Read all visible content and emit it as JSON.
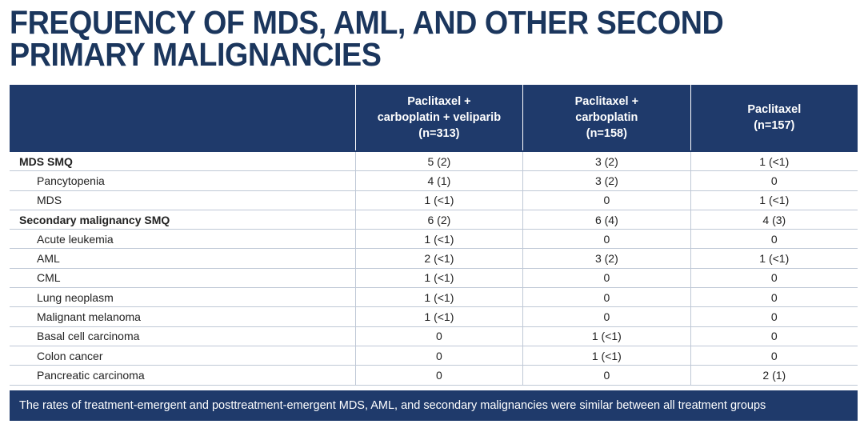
{
  "title": [
    "FREQUENCY OF MDS, AML, AND OTHER SECOND",
    "PRIMARY MALIGNANCIES"
  ],
  "table": {
    "headers": [
      [
        "Paclitaxel +",
        "carboplatin + veliparib",
        "(n=313)"
      ],
      [
        "Paclitaxel +",
        "carboplatin",
        "(n=158)"
      ],
      [
        "Paclitaxel",
        "(n=157)"
      ]
    ],
    "rows": [
      {
        "style": "group",
        "cells": [
          "MDS SMQ",
          "5 (2)",
          "3 (2)",
          "1 (<1)"
        ]
      },
      {
        "style": "item",
        "cells": [
          "Pancytopenia",
          "4 (1)",
          "3 (2)",
          "0"
        ]
      },
      {
        "style": "item",
        "cells": [
          "MDS",
          "1 (<1)",
          "0",
          "1 (<1)"
        ]
      },
      {
        "style": "group",
        "cells": [
          "Secondary malignancy SMQ",
          "6 (2)",
          "6 (4)",
          "4 (3)"
        ]
      },
      {
        "style": "item",
        "cells": [
          "Acute leukemia",
          "1 (<1)",
          "0",
          "0"
        ]
      },
      {
        "style": "item",
        "cells": [
          "AML",
          "2 (<1)",
          "3 (2)",
          "1 (<1)"
        ]
      },
      {
        "style": "item",
        "cells": [
          "CML",
          "1 (<1)",
          "0",
          "0"
        ]
      },
      {
        "style": "item",
        "cells": [
          "Lung neoplasm",
          "1 (<1)",
          "0",
          "0"
        ]
      },
      {
        "style": "item",
        "cells": [
          "Malignant melanoma",
          "1 (<1)",
          "0",
          "0"
        ]
      },
      {
        "style": "item",
        "cells": [
          "Basal cell carcinoma",
          "0",
          "1 (<1)",
          "0"
        ]
      },
      {
        "style": "item",
        "cells": [
          "Colon cancer",
          "0",
          "1 (<1)",
          "0"
        ]
      },
      {
        "style": "item",
        "cells": [
          "Pancreatic carcinoma",
          "0",
          "0",
          "2 (1)"
        ]
      }
    ]
  },
  "footer": "The rates of treatment-emergent and posttreatment-emergent MDS, AML, and secondary malignancies were similar between all treatment groups"
}
